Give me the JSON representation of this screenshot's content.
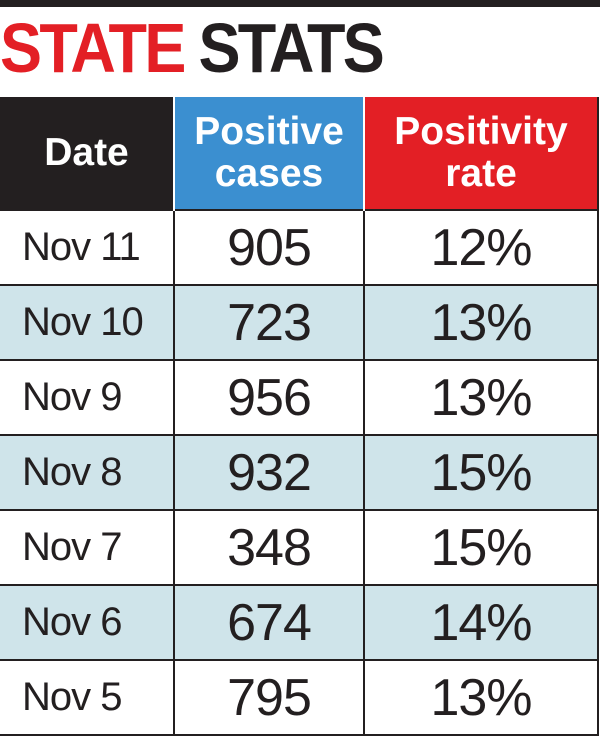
{
  "title": {
    "part1": "STATE",
    "part2": "STATS"
  },
  "chart_data": {
    "type": "table",
    "title": "STATE STATS",
    "columns": [
      {
        "line1": "Date",
        "line2": ""
      },
      {
        "line1": "Positive",
        "line2": "cases"
      },
      {
        "line1": "Positivity",
        "line2": "rate"
      }
    ],
    "header_colors": [
      "#231f20",
      "#3b8fd0",
      "#e31f25"
    ],
    "row_shading_color": "#cfe4ea",
    "rows": [
      {
        "date": "Nov 11",
        "cases": "905",
        "rate": "12%"
      },
      {
        "date": "Nov 10",
        "cases": "723",
        "rate": "13%"
      },
      {
        "date": "Nov 9",
        "cases": "956",
        "rate": "13%"
      },
      {
        "date": "Nov 8",
        "cases": "932",
        "rate": "15%"
      },
      {
        "date": "Nov 7",
        "cases": "348",
        "rate": "15%"
      },
      {
        "date": "Nov 6",
        "cases": "674",
        "rate": "14%"
      },
      {
        "date": "Nov 5",
        "cases": "795",
        "rate": "13%"
      }
    ]
  }
}
